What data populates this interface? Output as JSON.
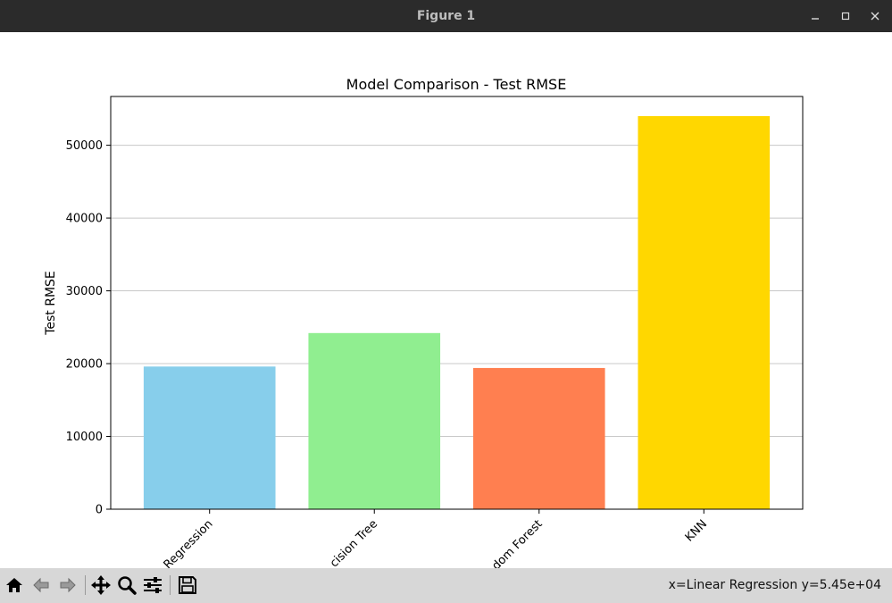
{
  "window": {
    "title": "Figure 1",
    "controls": {
      "minimize_icon": "minimize-icon",
      "maximize_icon": "maximize-icon",
      "close_icon": "close-icon"
    }
  },
  "toolbar": {
    "buttons": [
      "home-icon",
      "back-arrow-icon",
      "forward-arrow-icon",
      "pan-icon",
      "zoom-icon",
      "configure-subplots-icon",
      "save-icon"
    ],
    "coords": "x=Linear Regression y=5.45e+04"
  },
  "chart_data": {
    "type": "bar",
    "title": "Model Comparison - Test RMSE",
    "xlabel": "",
    "ylabel": "Test RMSE",
    "categories": [
      "Linear Regression",
      "Decision Tree",
      "Random Forest",
      "KNN"
    ],
    "visible_tick_labels": [
      "Regression",
      "cision Tree",
      "dom Forest",
      "KNN"
    ],
    "values": [
      19600,
      24200,
      19400,
      54000
    ],
    "colors": [
      "#87CEEB",
      "#90EE90",
      "#FF7F50",
      "#FFD700"
    ],
    "ylim": [
      0,
      56700
    ],
    "yticks": [
      0,
      10000,
      20000,
      30000,
      40000,
      50000
    ],
    "ytick_labels": [
      "0",
      "10000",
      "20000",
      "30000",
      "40000",
      "50000"
    ],
    "y_grid": true,
    "x_tick_rotation": 45
  }
}
